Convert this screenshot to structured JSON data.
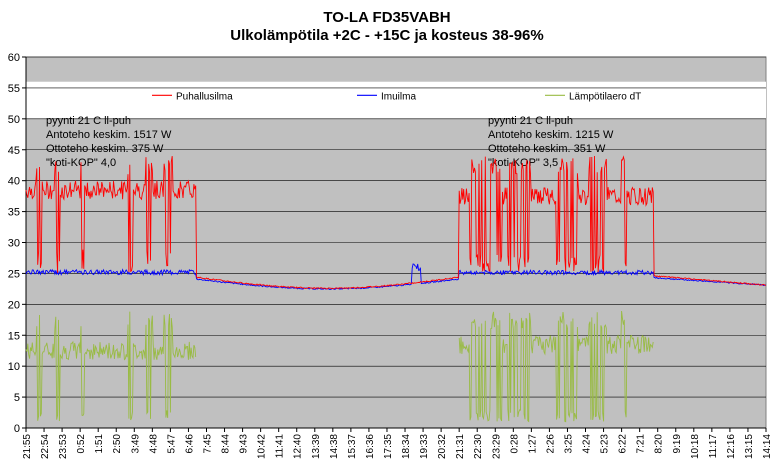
{
  "chart_data": {
    "type": "line",
    "title": "TO-LA FD35VABH",
    "subtitle": "Ulkolämpötila +2C - +15C ja kosteus 38-96%",
    "xlabel": "",
    "ylabel": "",
    "ylim": [
      0,
      60
    ],
    "y_ticks": [
      "0",
      "5",
      "10",
      "15",
      "20",
      "25",
      "30",
      "35",
      "40",
      "45",
      "50",
      "55",
      "60"
    ],
    "grid": true,
    "background": "#c0c0c0",
    "legend_placement": "top",
    "x_tick_labels": [
      "21:55",
      "22:54",
      "23:53",
      "0:52",
      "1:51",
      "2:50",
      "3:49",
      "4:48",
      "5:47",
      "6:46",
      "7:45",
      "8:44",
      "9:43",
      "10:42",
      "11:41",
      "12:40",
      "13:39",
      "14:38",
      "15:37",
      "16:36",
      "17:35",
      "18:34",
      "19:33",
      "20:32",
      "21:31",
      "22:30",
      "23:29",
      "0:28",
      "1:27",
      "2:26",
      "3:25",
      "4:24",
      "5:23",
      "6:22",
      "7:21",
      "8:20",
      "9:19",
      "10:18",
      "11:17",
      "12:16",
      "13:15",
      "14:14"
    ],
    "series": [
      {
        "name": "Puhallusilma",
        "color": "#ff0000"
      },
      {
        "name": "Imuilma",
        "color": "#0000ff"
      },
      {
        "name": "Lämpötilaero dT",
        "color": "#99bb44"
      }
    ],
    "annotations": [
      {
        "lines": [
          "pyynti 21 C ll-puh",
          "Antoteho keskim. 1517 W",
          "Ottoteho keskim. 375 W",
          "\"koti-KOP\" 4,0"
        ]
      },
      {
        "lines": [
          "pyynti 21 C ll-puh",
          "Antoteho keskim. 1215 W",
          "Ottoteho keskim. 351 W",
          "\"koti-KOP\" 3,5"
        ]
      }
    ]
  }
}
